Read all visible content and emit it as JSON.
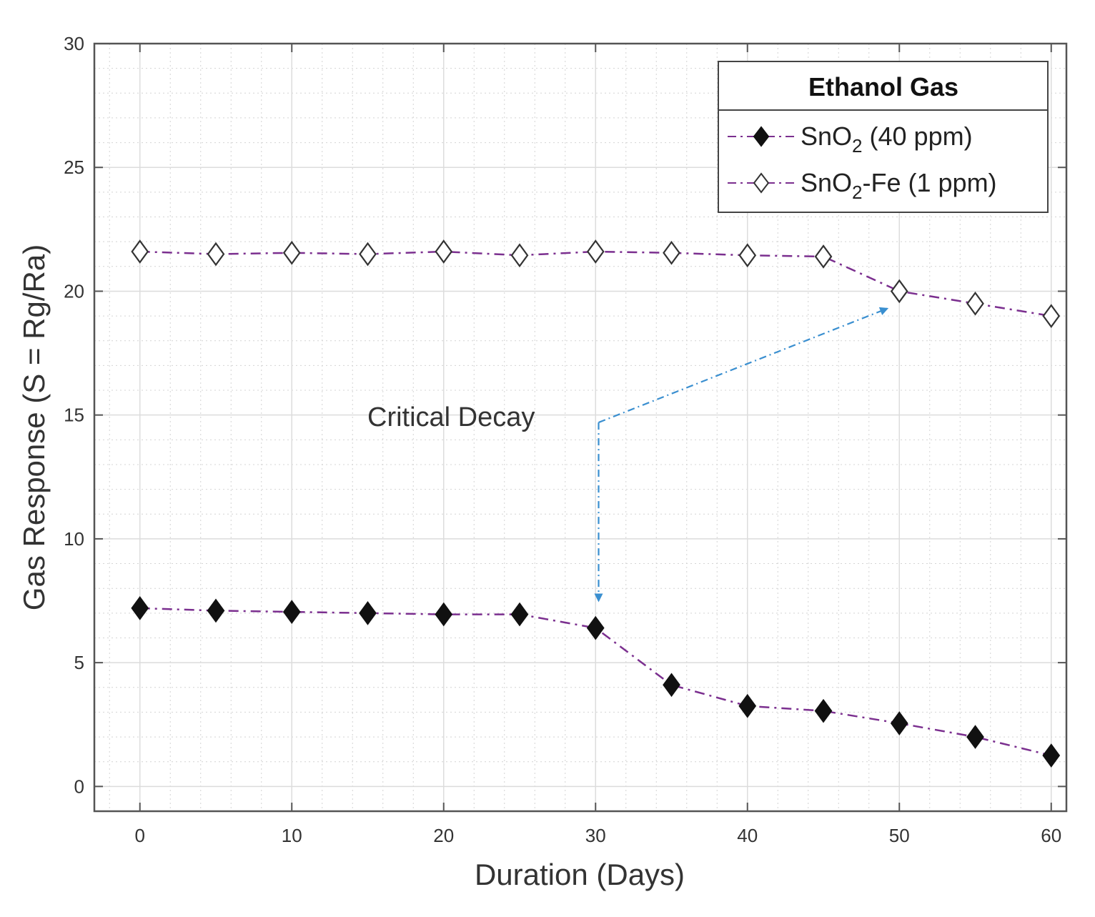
{
  "chart_data": {
    "type": "line",
    "xlabel": "Duration (Days)",
    "ylabel": "Gas Response (S = Rg/Ra)",
    "xlim": [
      -3,
      61
    ],
    "ylim": [
      -1,
      30
    ],
    "xticks": [
      0,
      10,
      20,
      30,
      40,
      50,
      60
    ],
    "yticks": [
      0,
      5,
      10,
      15,
      20,
      25,
      30
    ],
    "xtick_labels": [
      "0",
      "10",
      "20",
      "30",
      "40",
      "50",
      "60"
    ],
    "ytick_labels": [
      "0",
      "5",
      "10",
      "15",
      "20",
      "25",
      "30"
    ],
    "grid": true,
    "minor_grid": true,
    "x": [
      0,
      5,
      10,
      15,
      20,
      25,
      30,
      35,
      40,
      45,
      50,
      55,
      60
    ],
    "series": [
      {
        "name": "SnO2 (40 ppm)",
        "legend_base": "SnO",
        "legend_sub": "2",
        "legend_rest": " (40 ppm)",
        "marker": "filled-diamond",
        "color": "#7b2f8f",
        "values": [
          7.2,
          7.1,
          7.05,
          7.0,
          6.95,
          6.95,
          6.4,
          4.1,
          3.25,
          3.05,
          2.55,
          2.0,
          1.25
        ]
      },
      {
        "name": "SnO2-Fe (1 ppm)",
        "legend_base": "SnO",
        "legend_sub": "2",
        "legend_rest": "-Fe (1 ppm)",
        "marker": "open-diamond",
        "color": "#7b2f8f",
        "values": [
          21.6,
          21.5,
          21.55,
          21.5,
          21.6,
          21.45,
          21.6,
          21.55,
          21.45,
          21.4,
          20.0,
          19.5,
          19.0
        ]
      }
    ],
    "legend": {
      "title": "Ethanol Gas",
      "position": "top-right"
    },
    "annotation": {
      "text": "Critical Decay",
      "color": "#3a8fd0",
      "anchor": [
        30.2,
        14.7
      ],
      "arrows": [
        {
          "to": [
            30.2,
            7.5
          ]
        },
        {
          "to": [
            49.2,
            19.3
          ]
        }
      ]
    }
  }
}
